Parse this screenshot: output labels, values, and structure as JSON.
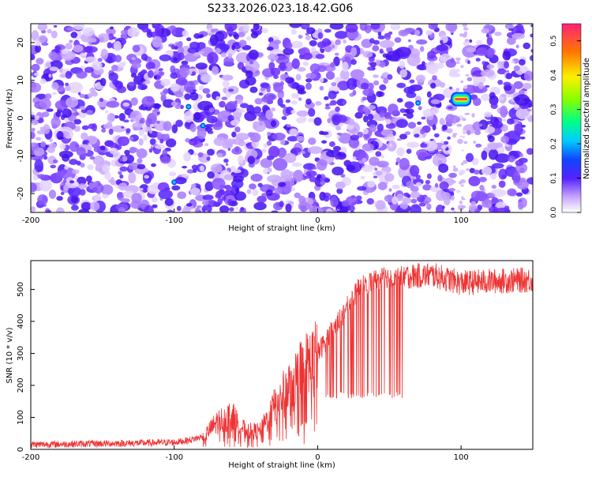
{
  "title": "S233.2026.023.18.42.G06",
  "chart_data": [
    {
      "type": "heatmap",
      "xlabel": "Height of straight line (km)",
      "ylabel": "Frequency (Hz)",
      "xlim": [
        -200,
        150
      ],
      "ylim": [
        -25,
        25
      ],
      "x_ticks": [
        -200,
        -100,
        0,
        100
      ],
      "y_ticks": [
        -20,
        -10,
        0,
        10,
        20
      ],
      "colorbar": {
        "label": "Normalized spectral amplitude",
        "range": [
          0,
          0.55
        ],
        "ticks": [
          0,
          0.1,
          0.2,
          0.3,
          0.4,
          0.5
        ]
      },
      "peaks": [
        {
          "x": 100,
          "y": 5,
          "value": 0.5
        },
        {
          "x": -90,
          "y": 3,
          "value": 0.13
        },
        {
          "x": -80,
          "y": -2,
          "value": 0.11
        },
        {
          "x": -100,
          "y": -17,
          "value": 0.1
        },
        {
          "x": 70,
          "y": 4,
          "value": 0.12
        }
      ],
      "notch": {
        "x": [
          95,
          105
        ],
        "value": 0.0
      },
      "grid": false
    },
    {
      "type": "line",
      "xlabel": "Height of straight line (km)",
      "ylabel": "SNR (10 * v/v)",
      "xlim": [
        -200,
        150
      ],
      "ylim": [
        0,
        590
      ],
      "x_ticks": [
        -200,
        -100,
        0,
        100
      ],
      "y_ticks": [
        0,
        100,
        200,
        300,
        400,
        500
      ],
      "color": "#ee3333",
      "grid": false,
      "series_envelope": {
        "x": [
          -200,
          -120,
          -100,
          -90,
          -80,
          -70,
          -60,
          -50,
          -40,
          -30,
          -20,
          -10,
          0,
          10,
          20,
          30,
          40,
          50,
          60,
          80,
          100,
          120,
          150
        ],
        "y": [
          15,
          20,
          22,
          28,
          40,
          90,
          110,
          60,
          60,
          140,
          200,
          260,
          300,
          370,
          440,
          510,
          530,
          540,
          540,
          545,
          520,
          525,
          530
        ]
      }
    }
  ]
}
